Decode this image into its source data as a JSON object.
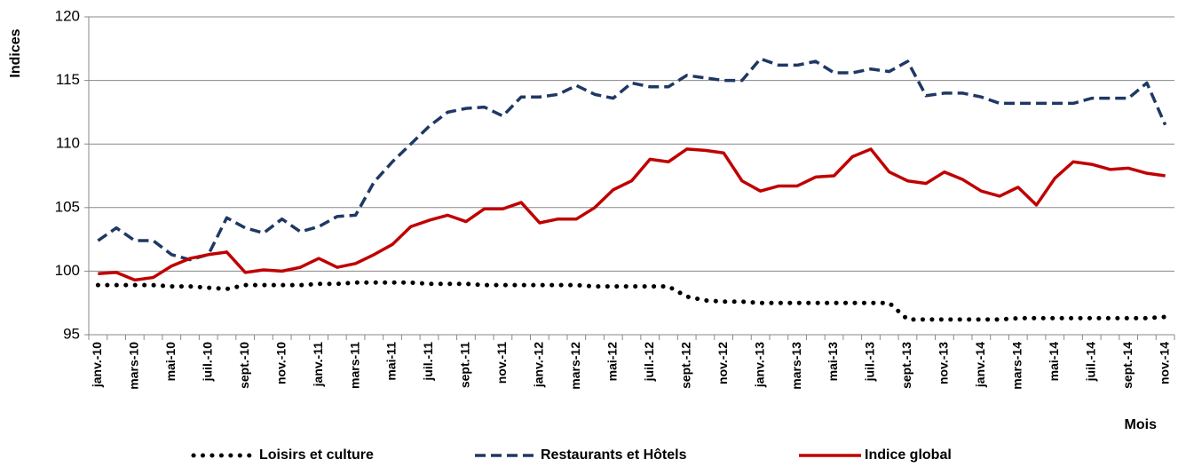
{
  "chart_data": {
    "type": "line",
    "y_label": "Indices",
    "x_label": "Mois",
    "categories": [
      "janv.-10",
      null,
      "mars-10",
      null,
      "mai-10",
      null,
      "juil.-10",
      null,
      "sept.-10",
      null,
      "nov.-10",
      null,
      "janv.-11",
      null,
      "mars-11",
      null,
      "mai-11",
      null,
      "juil.-11",
      null,
      "sept.-11",
      null,
      "nov.-11",
      null,
      "janv.-12",
      null,
      "mars-12",
      null,
      "mai-12",
      null,
      "juil.-12",
      null,
      "sept.-12",
      null,
      "nov.-12",
      null,
      "janv.-13",
      null,
      "mars-13",
      null,
      "mai-13",
      null,
      "juil.-13",
      null,
      "sept.-13",
      null,
      "nov.-13",
      null,
      "janv.-14",
      null,
      "mars-14",
      null,
      "mai-14",
      null,
      "juil.-14",
      null,
      "sept.-14",
      null,
      "nov.-14"
    ],
    "series": [
      {
        "name": "Loisirs et culture",
        "color": "#000000",
        "style": "dotted",
        "values": [
          98.9,
          98.9,
          98.9,
          98.9,
          98.8,
          98.8,
          98.7,
          98.6,
          98.9,
          98.9,
          98.9,
          98.9,
          99.0,
          99.0,
          99.1,
          99.1,
          99.1,
          99.1,
          99.0,
          99.0,
          99.0,
          98.9,
          98.9,
          98.9,
          98.9,
          98.9,
          98.9,
          98.8,
          98.8,
          98.8,
          98.8,
          98.8,
          98.0,
          97.7,
          97.6,
          97.6,
          97.5,
          97.5,
          97.5,
          97.5,
          97.5,
          97.5,
          97.5,
          97.5,
          96.2,
          96.2,
          96.2,
          96.2,
          96.2,
          96.2,
          96.3,
          96.3,
          96.3,
          96.3,
          96.3,
          96.3,
          96.3,
          96.3,
          96.4
        ]
      },
      {
        "name": "Restaurants et Hôtels",
        "color": "#1f3864",
        "style": "dashed",
        "values": [
          102.4,
          103.4,
          102.4,
          102.4,
          101.3,
          100.9,
          101.3,
          104.2,
          103.4,
          103.0,
          104.1,
          103.1,
          103.5,
          104.3,
          104.4,
          107.0,
          108.6,
          110.0,
          111.4,
          112.5,
          112.8,
          112.9,
          112.2,
          113.7,
          113.7,
          113.9,
          114.6,
          113.9,
          113.6,
          114.8,
          114.5,
          114.5,
          115.4,
          115.2,
          115.0,
          115.0,
          116.7,
          116.2,
          116.2,
          116.5,
          115.6,
          115.6,
          115.9,
          115.7,
          116.5,
          113.8,
          114.0,
          114.0,
          113.7,
          113.2,
          113.2,
          113.2,
          113.2,
          113.2,
          113.6,
          113.6,
          113.6,
          114.8,
          111.5
        ]
      },
      {
        "name": "Indice global",
        "color": "#c00000",
        "style": "solid",
        "values": [
          99.8,
          99.9,
          99.3,
          99.5,
          100.4,
          101.0,
          101.3,
          101.5,
          99.9,
          100.1,
          100.0,
          100.3,
          101.0,
          100.3,
          100.6,
          101.3,
          102.1,
          103.5,
          104.0,
          104.4,
          103.9,
          104.9,
          104.9,
          105.4,
          103.8,
          104.1,
          104.1,
          105.0,
          106.4,
          107.1,
          108.8,
          108.6,
          109.6,
          109.5,
          109.3,
          107.1,
          106.3,
          106.7,
          106.7,
          107.4,
          107.5,
          109.0,
          109.6,
          107.8,
          107.1,
          106.9,
          107.8,
          107.2,
          106.3,
          105.9,
          106.6,
          105.2,
          107.3,
          108.6,
          108.4,
          108.0,
          108.1,
          107.7,
          107.5
        ]
      }
    ],
    "ylim": [
      95,
      120
    ],
    "yticks": [
      95,
      100,
      105,
      110,
      115,
      120
    ],
    "grid": true,
    "legend": "bottom"
  }
}
